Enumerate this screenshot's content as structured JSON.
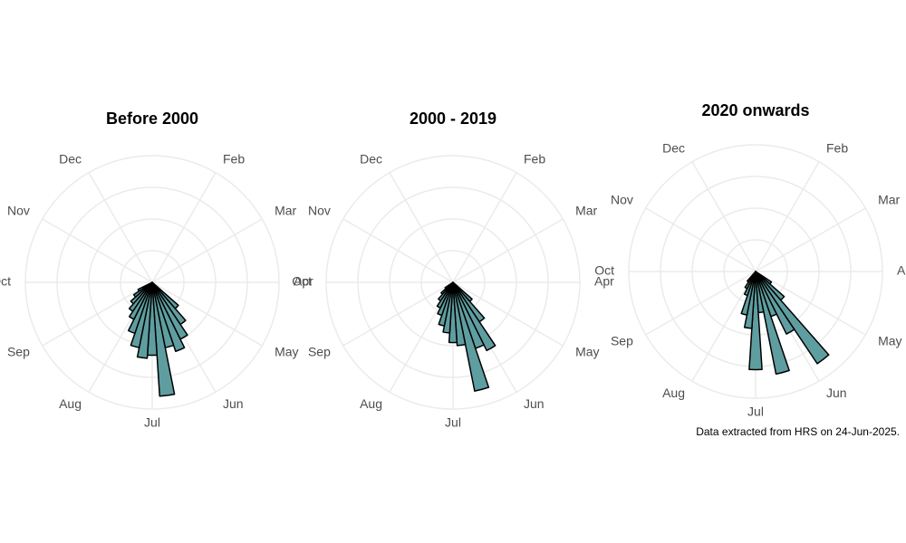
{
  "chart_data": [
    {
      "type": "rose",
      "title": "Before 2000",
      "color": "#5f9ea0",
      "edge_color": "#000000",
      "x": [
        4.5,
        4.75,
        5.0,
        5.25,
        5.5,
        5.75,
        6.0,
        6.25,
        6.5,
        6.75,
        7.0,
        7.25,
        7.5,
        7.75,
        8.0
      ],
      "values": [
        11,
        16,
        20,
        23,
        21,
        36,
        23,
        24,
        21,
        17,
        13,
        11,
        9,
        7,
        5
      ],
      "xlim": [
        0,
        12
      ],
      "xticks": [
        {
          "value": 1,
          "label": "Feb"
        },
        {
          "value": 2,
          "label": "Mar"
        },
        {
          "value": 3,
          "label": "Apr"
        },
        {
          "value": 4,
          "label": "May"
        },
        {
          "value": 5,
          "label": "Jun"
        },
        {
          "value": 6,
          "label": "Jul"
        },
        {
          "value": 7,
          "label": "Aug"
        },
        {
          "value": 8,
          "label": "Sep"
        },
        {
          "value": 9,
          "label": "Oct"
        },
        {
          "value": 10,
          "label": "Nov"
        },
        {
          "value": 11,
          "label": "Dec"
        }
      ],
      "ylim": [
        0,
        40
      ],
      "yticks": [
        10,
        20,
        30,
        40
      ],
      "grid": true
    },
    {
      "type": "rose",
      "title": "2000 - 2019",
      "color": "#5f9ea0",
      "edge_color": "#000000",
      "x": [
        4.5,
        4.75,
        5.0,
        5.25,
        5.5,
        5.75,
        6.0,
        6.25,
        6.5,
        6.75,
        7.0,
        7.25,
        7.5,
        7.75
      ],
      "values": [
        8,
        15,
        24,
        22,
        35,
        20,
        19,
        16,
        14,
        11,
        9,
        7,
        5,
        3
      ],
      "xlim": [
        0,
        12
      ],
      "xticks": [
        {
          "value": 1,
          "label": "Feb"
        },
        {
          "value": 2,
          "label": "Mar"
        },
        {
          "value": 3,
          "label": "Apr"
        },
        {
          "value": 4,
          "label": "May"
        },
        {
          "value": 5,
          "label": "Jun"
        },
        {
          "value": 6,
          "label": "Jul"
        },
        {
          "value": 7,
          "label": "Aug"
        },
        {
          "value": 8,
          "label": "Sep"
        },
        {
          "value": 9,
          "label": "Oct"
        },
        {
          "value": 10,
          "label": "Nov"
        },
        {
          "value": 11,
          "label": "Dec"
        }
      ],
      "ylim": [
        0,
        40
      ],
      "yticks": [
        10,
        20,
        30,
        40
      ],
      "grid": true
    },
    {
      "type": "rose",
      "title": "2020 onwards",
      "color": "#5f9ea0",
      "edge_color": "#000000",
      "x": [
        4.25,
        4.5,
        4.75,
        5.0,
        5.25,
        5.5,
        5.75,
        6.0,
        6.25,
        6.5,
        6.75,
        7.0,
        7.25
      ],
      "values": [
        6,
        12,
        35,
        22,
        15,
        33,
        13,
        31,
        18,
        14,
        8,
        6,
        4
      ],
      "xlim": [
        0,
        12
      ],
      "xticks": [
        {
          "value": 1,
          "label": "Feb"
        },
        {
          "value": 2,
          "label": "Mar"
        },
        {
          "value": 3,
          "label": "Apr"
        },
        {
          "value": 4,
          "label": "May"
        },
        {
          "value": 5,
          "label": "Jun"
        },
        {
          "value": 6,
          "label": "Jul"
        },
        {
          "value": 7,
          "label": "Aug"
        },
        {
          "value": 8,
          "label": "Sep"
        },
        {
          "value": 9,
          "label": "Oct"
        },
        {
          "value": 10,
          "label": "Nov"
        },
        {
          "value": 11,
          "label": "Dec"
        }
      ],
      "ylim": [
        0,
        40
      ],
      "yticks": [
        10,
        20,
        30,
        40
      ],
      "grid": true
    }
  ],
  "caption": "Data extracted from HRS on 24-Jun-2025."
}
